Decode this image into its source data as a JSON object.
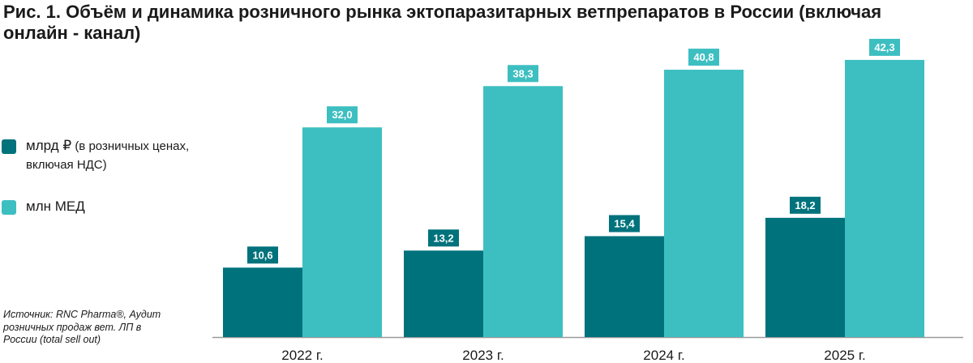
{
  "title": "Рис. 1. Объём и динамика розничного рынка эктопаразитарных ветпрепаратов в России (включая онлайн - канал)",
  "legend": {
    "rub": {
      "unit": "млрд ₽",
      "note": "(в розничных ценах, включая НДС)"
    },
    "med": {
      "text": "млн МЕД"
    }
  },
  "source": "Источник: RNC Pharma®, Аудит розничных продаж вет. ЛП в России (total sell out)",
  "colors": {
    "rub": "#00727c",
    "med": "#3dbfc1",
    "axis": "#9a9a9a"
  },
  "chart_data": {
    "type": "bar",
    "categories": [
      "2022 г.",
      "2023 г.",
      "2024 г.",
      "2025 г."
    ],
    "series": [
      {
        "name": "млрд ₽ (в розничных ценах, включая НДС)",
        "values": [
          10.6,
          13.2,
          15.4,
          18.2
        ],
        "labels": [
          "10,6",
          "13,2",
          "15,4",
          "18,2"
        ]
      },
      {
        "name": "млн МЕД",
        "values": [
          32.0,
          38.3,
          40.8,
          42.3
        ],
        "labels": [
          "32,0",
          "38,3",
          "40,8",
          "42,3"
        ]
      }
    ],
    "grid": false,
    "legend_position": "left"
  }
}
